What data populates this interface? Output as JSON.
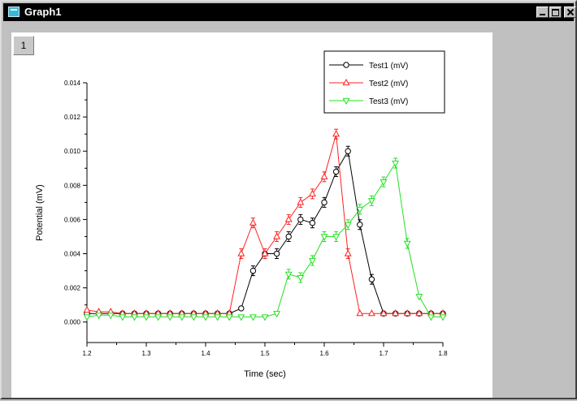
{
  "window": {
    "title": "Graph1",
    "layer_label": "1"
  },
  "chart_data": {
    "type": "line",
    "xlabel": "Time (sec)",
    "ylabel": "Potential (mV)",
    "xlim": [
      1.2,
      1.8
    ],
    "ylim": [
      -0.0012,
      0.014
    ],
    "xticks": [
      "1.2",
      "1.3",
      "1.4",
      "1.5",
      "1.6",
      "1.7",
      "1.8"
    ],
    "yticks": [
      "0.000",
      "0.002",
      "0.004",
      "0.006",
      "0.008",
      "0.010",
      "0.012",
      "0.014"
    ],
    "legend_position": "top-right",
    "series": [
      {
        "name": "Test1 (mV)",
        "color": "#000000",
        "marker": "circle",
        "x": [
          1.2,
          1.22,
          1.24,
          1.26,
          1.28,
          1.3,
          1.32,
          1.34,
          1.36,
          1.38,
          1.4,
          1.42,
          1.44,
          1.46,
          1.48,
          1.5,
          1.52,
          1.54,
          1.56,
          1.58,
          1.6,
          1.62,
          1.64,
          1.66,
          1.68,
          1.7,
          1.72,
          1.74,
          1.76,
          1.78,
          1.8
        ],
        "y": [
          0.0005,
          0.0005,
          0.0005,
          0.0005,
          0.0005,
          0.0005,
          0.0005,
          0.0005,
          0.0005,
          0.0005,
          0.0005,
          0.0005,
          0.0005,
          0.0008,
          0.003,
          0.004,
          0.004,
          0.005,
          0.006,
          0.0058,
          0.007,
          0.0088,
          0.01,
          0.0057,
          0.0025,
          0.0005,
          0.0005,
          0.0005,
          0.0005,
          0.0005,
          0.0005
        ]
      },
      {
        "name": "Test2 (mV)",
        "color": "#ff2020",
        "marker": "triangle-up",
        "x": [
          1.2,
          1.22,
          1.24,
          1.26,
          1.28,
          1.3,
          1.32,
          1.34,
          1.36,
          1.38,
          1.4,
          1.42,
          1.44,
          1.46,
          1.48,
          1.5,
          1.52,
          1.54,
          1.56,
          1.58,
          1.6,
          1.62,
          1.64,
          1.66,
          1.68,
          1.7,
          1.72,
          1.74,
          1.76,
          1.78,
          1.8
        ],
        "y": [
          0.0007,
          0.0006,
          0.0006,
          0.0005,
          0.0005,
          0.0005,
          0.0005,
          0.0005,
          0.0005,
          0.0005,
          0.0005,
          0.0005,
          0.0005,
          0.004,
          0.0058,
          0.004,
          0.005,
          0.006,
          0.007,
          0.0075,
          0.0085,
          0.011,
          0.004,
          0.0005,
          0.0005,
          0.0005,
          0.0005,
          0.0005,
          0.0005,
          0.0005,
          0.0005
        ]
      },
      {
        "name": "Test3 (mV)",
        "color": "#22e022",
        "marker": "triangle-down",
        "x": [
          1.2,
          1.22,
          1.24,
          1.26,
          1.28,
          1.3,
          1.32,
          1.34,
          1.36,
          1.38,
          1.4,
          1.42,
          1.44,
          1.46,
          1.48,
          1.5,
          1.52,
          1.54,
          1.56,
          1.58,
          1.6,
          1.62,
          1.64,
          1.66,
          1.68,
          1.7,
          1.72,
          1.74,
          1.76,
          1.78,
          1.8
        ],
        "y": [
          0.0003,
          0.0004,
          0.0004,
          0.0003,
          0.0003,
          0.0003,
          0.0003,
          0.0003,
          0.0003,
          0.0003,
          0.0003,
          0.0003,
          0.0003,
          0.0003,
          0.0003,
          0.0003,
          0.0005,
          0.0028,
          0.0026,
          0.0036,
          0.005,
          0.005,
          0.0057,
          0.0066,
          0.0071,
          0.0082,
          0.0093,
          0.0046,
          0.0015,
          0.0003,
          0.0003
        ]
      }
    ]
  }
}
